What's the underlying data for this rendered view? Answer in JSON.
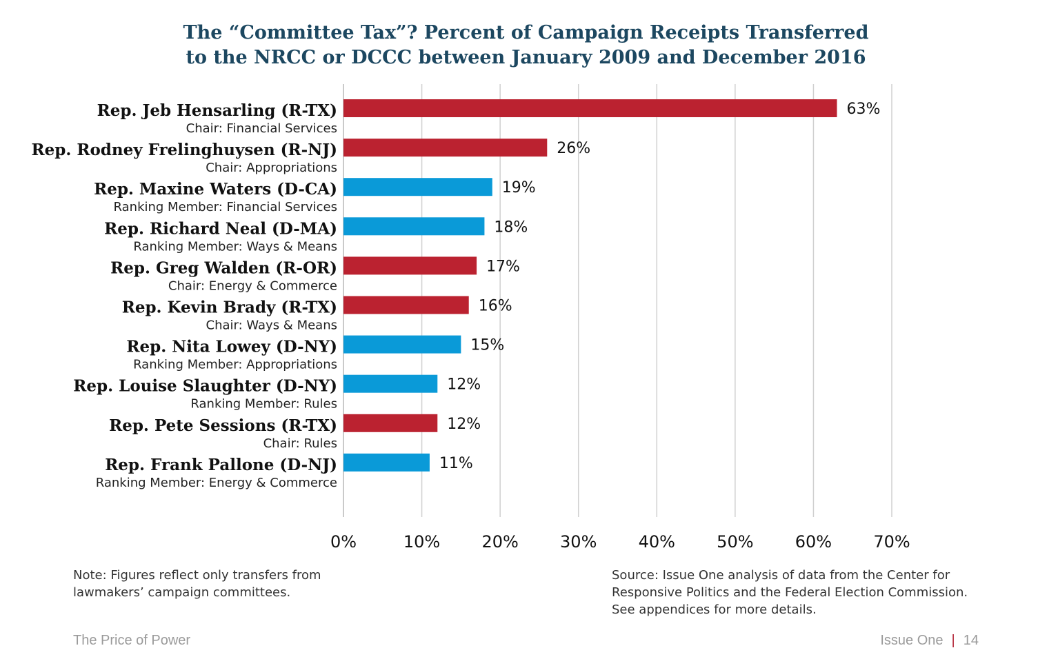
{
  "chart_data": {
    "type": "bar",
    "orientation": "horizontal",
    "title_line1": "The “Committee Tax”? Percent of Campaign Receipts Transferred",
    "title_line2": "to the NRCC or DCCC between January 2009 and December 2016",
    "categories": [
      "Rep. Jeb Hensarling (R-TX)",
      "Rep. Rodney Frelinghuysen (R-NJ)",
      "Rep. Maxine Waters (D-CA)",
      "Rep. Richard Neal (D-MA)",
      "Rep. Greg Walden (R-OR)",
      "Rep. Kevin Brady (R-TX)",
      "Rep. Nita Lowey (D-NY)",
      "Rep. Louise Slaughter (D-NY)",
      "Rep. Pete Sessions (R-TX)",
      "Rep. Frank Pallone (D-NJ)"
    ],
    "roles": [
      "Chair: Financial Services",
      "Chair: Appropriations",
      "Ranking Member: Financial Services",
      "Ranking Member: Ways & Means",
      "Chair: Energy & Commerce",
      "Chair: Ways & Means",
      "Ranking Member: Appropriations",
      "Ranking Member: Rules",
      "Chair: Rules",
      "Ranking Member: Energy & Commerce"
    ],
    "values": [
      63,
      26,
      19,
      18,
      17,
      16,
      15,
      12,
      12,
      11
    ],
    "value_labels": [
      "63%",
      "26%",
      "19%",
      "18%",
      "17%",
      "16%",
      "15%",
      "12%",
      "12%",
      "11%"
    ],
    "parties": [
      "R",
      "R",
      "D",
      "D",
      "R",
      "R",
      "D",
      "D",
      "R",
      "D"
    ],
    "xlim": [
      0,
      70
    ],
    "xticks": [
      0,
      10,
      20,
      30,
      40,
      50,
      60,
      70
    ],
    "xtick_labels": [
      "0%",
      "10%",
      "20%",
      "30%",
      "40%",
      "50%",
      "60%",
      "70%"
    ],
    "grid": "vertical",
    "colors": {
      "R": "#bb2230",
      "D": "#0a9ad8",
      "grid": "#d0d0d0"
    }
  },
  "note": {
    "line1": "Note: Figures reflect only transfers from",
    "line2": "lawmakers’ campaign committees."
  },
  "source": {
    "line1": "Source: Issue One analysis of data from the Center for",
    "line2": "Responsive Politics and the Federal Election Commission.",
    "line3": "See appendices for more details."
  },
  "footer": {
    "left": "The Price of Power",
    "org": "Issue One",
    "separator": "|",
    "page": "14"
  }
}
